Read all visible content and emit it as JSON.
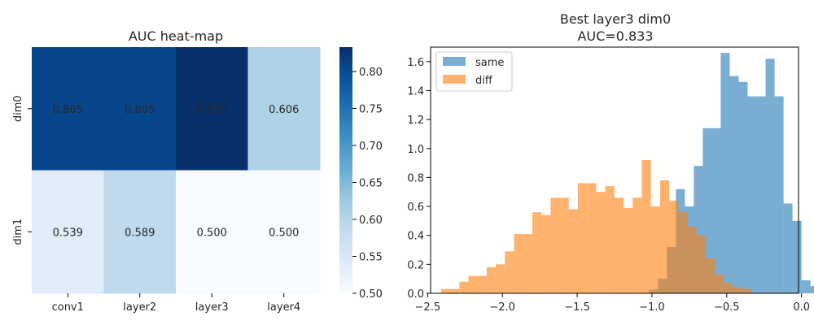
{
  "chart_data": [
    {
      "type": "heatmap",
      "title": "AUC heat-map",
      "x_categories": [
        "conv1",
        "layer2",
        "layer3",
        "layer4"
      ],
      "y_categories": [
        "dim0",
        "dim1"
      ],
      "values": [
        [
          0.805,
          0.805,
          0.833,
          0.606
        ],
        [
          0.539,
          0.589,
          0.5,
          0.5
        ]
      ],
      "value_labels": [
        [
          "0.805",
          "0.805",
          "0.833",
          "0.606"
        ],
        [
          "0.539",
          "0.589",
          "0.500",
          "0.500"
        ]
      ],
      "colormap": "Blues",
      "vmin": 0.5,
      "vmax": 0.833,
      "colorbar_ticks": [
        0.5,
        0.55,
        0.6,
        0.65,
        0.7,
        0.75,
        0.8
      ],
      "colorbar_tick_labels": [
        "0.50",
        "0.55",
        "0.60",
        "0.65",
        "0.70",
        "0.75",
        "0.80"
      ]
    },
    {
      "type": "histogram",
      "title": "Best layer3 dim0",
      "subtitle": "AUC=0.833",
      "xlim": [
        -2.48,
        -0.02
      ],
      "ylim": [
        0,
        1.7
      ],
      "xticks": [
        -2.5,
        -2.0,
        -1.5,
        -1.0,
        -0.5,
        0.0
      ],
      "xtick_labels": [
        "−2.5",
        "−2.0",
        "−1.5",
        "−1.0",
        "−0.5",
        "0.0"
      ],
      "yticks": [
        0,
        0.2,
        0.4,
        0.6,
        0.8,
        1.0,
        1.2,
        1.4,
        1.6
      ],
      "ytick_labels": [
        "0.0",
        "0.2",
        "0.4",
        "0.6",
        "0.8",
        "1.0",
        "1.2",
        "1.4",
        "1.6"
      ],
      "legend_position": "top-left",
      "series": [
        {
          "name": "same",
          "color": "#1f77b4",
          "alpha": 0.6,
          "bin_start": -1.02,
          "bin_width": 0.06,
          "values": [
            0.025,
            0.1,
            0.32,
            0.72,
            0.6,
            0.88,
            1.14,
            1.14,
            1.66,
            1.5,
            1.46,
            1.36,
            1.36,
            1.62,
            1.36,
            0.62,
            0.5,
            0.09,
            0.05
          ]
        },
        {
          "name": "diff",
          "color": "#ff7f0e",
          "alpha": 0.6,
          "bin_start": -2.41,
          "bin_width": 0.061,
          "values": [
            0.03,
            0.03,
            0.08,
            0.12,
            0.12,
            0.18,
            0.2,
            0.29,
            0.41,
            0.41,
            0.56,
            0.54,
            0.66,
            0.66,
            0.58,
            0.76,
            0.76,
            0.7,
            0.74,
            0.66,
            0.59,
            0.66,
            0.92,
            0.6,
            0.78,
            0.64,
            0.56,
            0.46,
            0.4,
            0.24,
            0.13,
            0.07,
            0.04,
            0.03
          ]
        }
      ]
    }
  ]
}
